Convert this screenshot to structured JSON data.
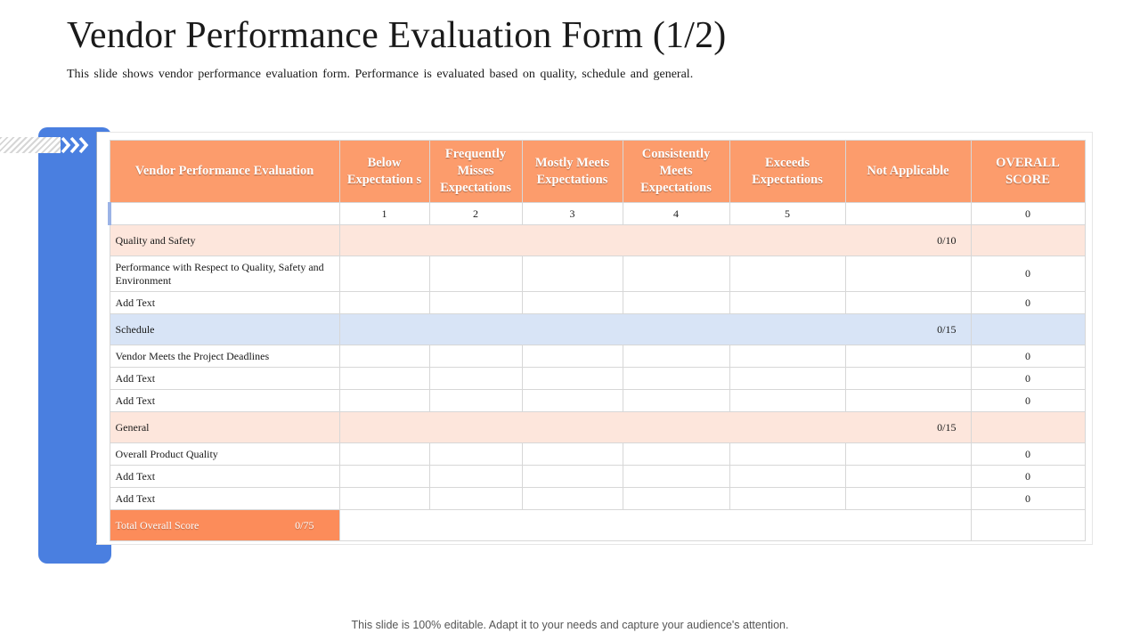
{
  "slide": {
    "title": "Vendor Performance Evaluation Form (1/2)",
    "subtitle": "This slide shows vendor performance evaluation form. Performance is evaluated based on quality, schedule and general.",
    "footer": "This slide is 100% editable. Adapt it to your needs and capture your audience's attention."
  },
  "colors": {
    "accent_blue": "#4a7fe0",
    "header_orange": "#fc9c6c",
    "total_orange": "#fc8c5a",
    "section_orange": "#fde6dc",
    "section_blue": "#d8e4f6"
  },
  "icons": [
    "chevron-right-icon"
  ],
  "table": {
    "headers": [
      "Vendor Performance Evaluation",
      "Below Expectation s",
      "Frequently Misses Expectations",
      "Mostly Meets Expectations",
      "Consistently Meets Expectations",
      "Exceeds Expectations",
      "Not Applicable",
      "OVERALL SCORE"
    ],
    "scale": [
      "1",
      "2",
      "3",
      "4",
      "5",
      "",
      "0"
    ],
    "sections": [
      {
        "label": "Quality and Safety",
        "score": "0/10",
        "items": [
          {
            "label": "Performance with Respect to Quality, Safety and Environment",
            "score": "0"
          },
          {
            "label": "Add Text",
            "score": "0"
          }
        ]
      },
      {
        "label": "Schedule",
        "score": "0/15",
        "items": [
          {
            "label": "Vendor Meets the Project Deadlines",
            "score": "0"
          },
          {
            "label": "Add Text",
            "score": "0"
          },
          {
            "label": "Add Text",
            "score": "0"
          }
        ]
      },
      {
        "label": "General",
        "score": "0/15",
        "items": [
          {
            "label": "Overall Product Quality",
            "score": "0"
          },
          {
            "label": "Add Text",
            "score": "0"
          },
          {
            "label": "Add Text",
            "score": "0"
          }
        ]
      }
    ],
    "total": {
      "label": "Total Overall Score",
      "score": "0/75"
    }
  }
}
